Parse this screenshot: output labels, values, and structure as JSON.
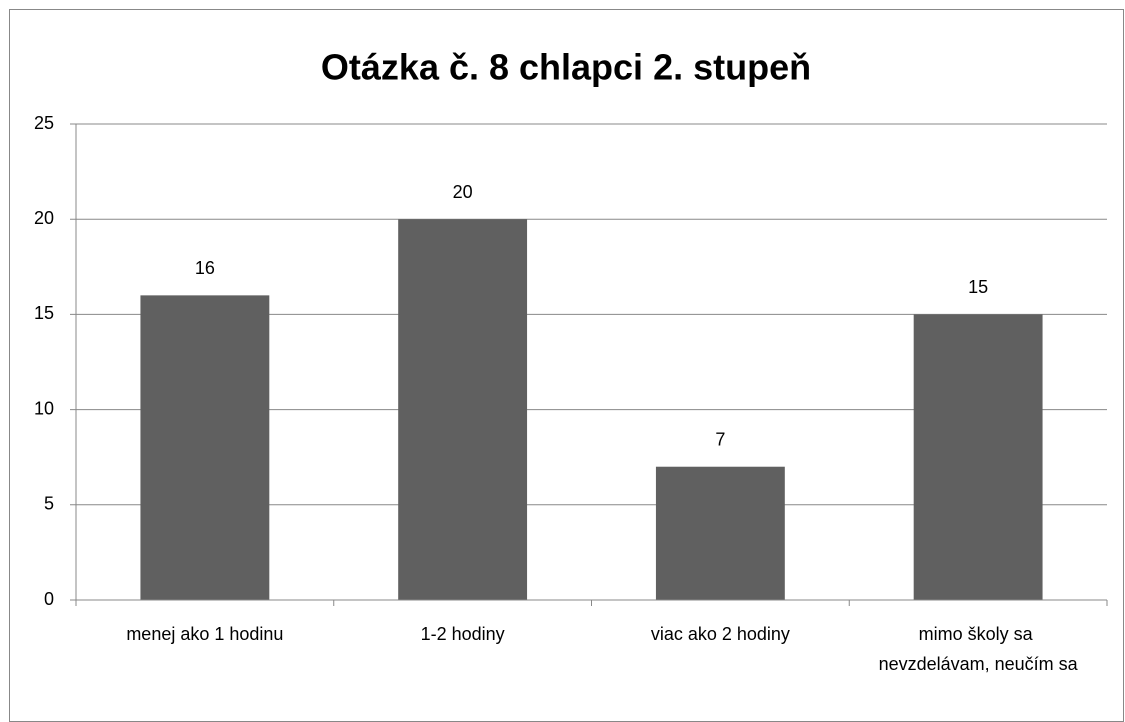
{
  "chart_data": {
    "type": "bar",
    "title": "Otázka č. 8 chlapci 2. stupeň",
    "categories": [
      "menej ako 1 hodinu",
      "1-2 hodiny",
      "viac ako 2 hodiny",
      "mimo školy sa nevzdelávam, neučím sa"
    ],
    "values": [
      16,
      20,
      7,
      15
    ],
    "color": "#606060",
    "ylim": [
      0,
      25
    ],
    "yticks": [
      0,
      5,
      10,
      15,
      20,
      25
    ],
    "grid": true
  }
}
